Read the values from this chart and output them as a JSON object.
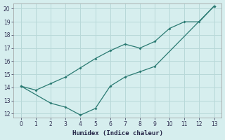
{
  "xlabel": "Humidex (Indice chaleur)",
  "line1_x": [
    0,
    1,
    2,
    3,
    4,
    5,
    6,
    7,
    8,
    9,
    10,
    11,
    12,
    13
  ],
  "line1_y": [
    14.1,
    13.8,
    14.3,
    14.8,
    15.5,
    16.2,
    16.8,
    17.3,
    17.0,
    17.5,
    18.5,
    19.0,
    19.0,
    20.2
  ],
  "line2_x": [
    0,
    2,
    3,
    4,
    5,
    6,
    7,
    8,
    9,
    13
  ],
  "line2_y": [
    14.1,
    12.8,
    12.5,
    11.9,
    12.4,
    14.1,
    14.8,
    15.2,
    15.6,
    20.2
  ],
  "line_color": "#2a7a72",
  "bg_color": "#d6eeee",
  "grid_color": "#b8d8d8",
  "xmin": 0,
  "xmax": 13,
  "ymin": 12,
  "ymax": 20,
  "yticks": [
    12,
    13,
    14,
    15,
    16,
    17,
    18,
    19,
    20
  ],
  "xticks": [
    0,
    1,
    2,
    3,
    4,
    5,
    6,
    7,
    8,
    9,
    10,
    11,
    12,
    13
  ]
}
